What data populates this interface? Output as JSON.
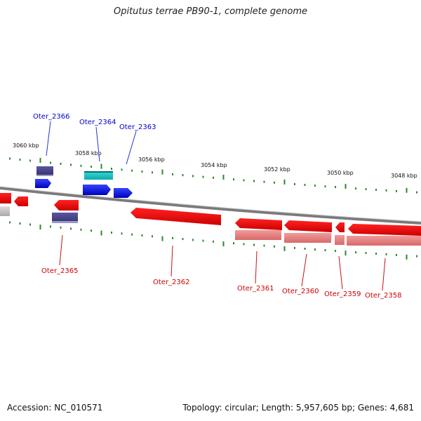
{
  "title": "Opitutus terrae PB90-1, complete genome",
  "footer": {
    "accession": "Accession: NC_010571",
    "topology": "Topology: circular; Length: 5,957,605 bp; Genes: 4,681"
  },
  "ticks": [
    {
      "label": "3060 kbp"
    },
    {
      "label": "3058 kbp"
    },
    {
      "label": "3056 kbp"
    },
    {
      "label": "3054 kbp"
    },
    {
      "label": "3052 kbp"
    },
    {
      "label": "3050 kbp"
    },
    {
      "label": "3048 kbp"
    }
  ],
  "genes": [
    {
      "name": "Oter_2366",
      "color": "#0000cc"
    },
    {
      "name": "Oter_2364",
      "color": "#0000cc"
    },
    {
      "name": "Oter_2363",
      "color": "#0000cc"
    },
    {
      "name": "Oter_2365",
      "color": "#cc0000"
    },
    {
      "name": "Oter_2362",
      "color": "#cc0000"
    },
    {
      "name": "Oter_2361",
      "color": "#cc0000"
    },
    {
      "name": "Oter_2360",
      "color": "#cc0000"
    },
    {
      "name": "Oter_2359",
      "color": "#cc0000"
    },
    {
      "name": "Oter_2358",
      "color": "#cc0000"
    }
  ],
  "colors": {
    "forward_gene": "#0000ee",
    "reverse_gene": "#ee0000",
    "reverse_gene_light": "#ee8888",
    "cds_purple": "#4a4488",
    "cds_cyan": "#22cccc",
    "backbone": "#808080",
    "tick_marks": "#2a8a2a"
  }
}
